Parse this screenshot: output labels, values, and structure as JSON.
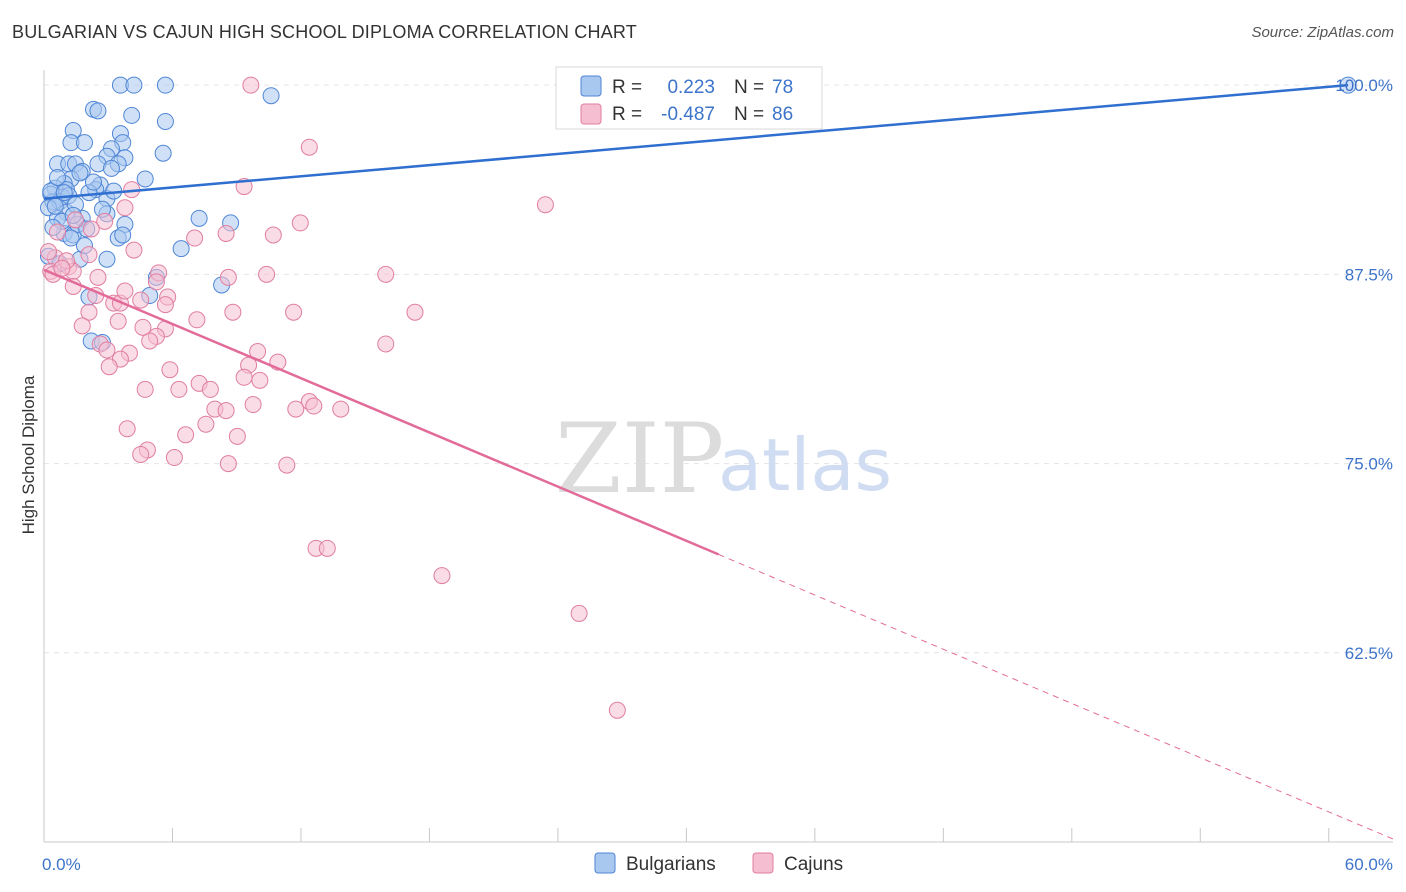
{
  "title": "BULGARIAN VS CAJUN HIGH SCHOOL DIPLOMA CORRELATION CHART",
  "source": "Source: ZipAtlas.com",
  "watermark": {
    "zip": "ZIP",
    "atlas": "atlas"
  },
  "colors": {
    "blue_fill": "#a9c8f0",
    "blue_stroke": "#4f86d6",
    "blue_line": "#2f6fcf",
    "pink_fill": "#f6bfd1",
    "pink_stroke": "#e07ea0",
    "pink_line": "#e26b99",
    "tick_color": "#3d74c9",
    "grid": "#e4e4e4"
  },
  "legend_box": {
    "rows": [
      {
        "r_label": "R =",
        "r_value": "0.223",
        "n_label": "N =",
        "n_value": "78",
        "series": "Bulgarians"
      },
      {
        "r_label": "R =",
        "r_value": "-0.487",
        "n_label": "N =",
        "n_value": "86",
        "series": "Cajuns"
      }
    ]
  },
  "chart_data": {
    "type": "scatter",
    "title": "BULGARIAN VS CAJUN HIGH SCHOOL DIPLOMA CORRELATION CHART",
    "xlabel": "",
    "ylabel": "High School Diploma",
    "xlim": [
      0,
      60
    ],
    "ylim": [
      50,
      101
    ],
    "x_tick_labels": [
      "0.0%",
      "60.0%"
    ],
    "y_ticks": [
      62.5,
      75.0,
      87.5,
      100.0
    ],
    "y_tick_labels": [
      "62.5%",
      "75.0%",
      "87.5%",
      "100.0%"
    ],
    "grid": true,
    "legend": [
      "Bulgarians",
      "Cajuns"
    ],
    "series": [
      {
        "name": "Bulgarians",
        "color": "#4f86d6",
        "r": 0.223,
        "n": 78,
        "trend": {
          "x": [
            0,
            58
          ],
          "y": [
            92.5,
            100.0
          ]
        },
        "points": [
          [
            3.4,
            100
          ],
          [
            4.0,
            100
          ],
          [
            5.4,
            100
          ],
          [
            10.1,
            99.3
          ],
          [
            2.2,
            98.4
          ],
          [
            2.4,
            98.3
          ],
          [
            3.9,
            98.0
          ],
          [
            5.4,
            97.6
          ],
          [
            1.3,
            97
          ],
          [
            3.4,
            96.8
          ],
          [
            1.2,
            96.2
          ],
          [
            1.8,
            96.2
          ],
          [
            3.5,
            96.2
          ],
          [
            3.0,
            95.8
          ],
          [
            2.8,
            95.3
          ],
          [
            5.3,
            95.5
          ],
          [
            3.6,
            95.2
          ],
          [
            0.6,
            94.8
          ],
          [
            1.1,
            94.8
          ],
          [
            1.4,
            94.8
          ],
          [
            2.4,
            94.8
          ],
          [
            3.3,
            94.8
          ],
          [
            1.7,
            94.3
          ],
          [
            1.2,
            93.8
          ],
          [
            0.9,
            93.5
          ],
          [
            2.5,
            93.4
          ],
          [
            0.5,
            93.2
          ],
          [
            1.0,
            93.1
          ],
          [
            2.3,
            93.1
          ],
          [
            4.5,
            93.8
          ],
          [
            0.3,
            92.8
          ],
          [
            0.8,
            92.6
          ],
          [
            2.8,
            92.5
          ],
          [
            0.4,
            92.3
          ],
          [
            0.7,
            92.3
          ],
          [
            0.2,
            91.9
          ],
          [
            1.0,
            91.6
          ],
          [
            0.6,
            91.2
          ],
          [
            1.7,
            91.2
          ],
          [
            2.8,
            91.5
          ],
          [
            6.9,
            91.2
          ],
          [
            8.3,
            90.9
          ],
          [
            3.6,
            90.8
          ],
          [
            0.9,
            90.2
          ],
          [
            1.3,
            90.1
          ],
          [
            1.5,
            90.8
          ],
          [
            1.9,
            90.5
          ],
          [
            1.2,
            89.9
          ],
          [
            3.3,
            89.9
          ],
          [
            3.5,
            90.1
          ],
          [
            6.1,
            89.2
          ],
          [
            1.6,
            88.5
          ],
          [
            2.8,
            88.5
          ],
          [
            5.0,
            87.3
          ],
          [
            7.9,
            86.8
          ],
          [
            2.0,
            86.0
          ],
          [
            4.7,
            86.1
          ],
          [
            2.1,
            83.1
          ],
          [
            2.6,
            83.0
          ],
          [
            0.3,
            93.0
          ],
          [
            0.5,
            92.0
          ],
          [
            1.1,
            92.7
          ],
          [
            2.0,
            92.9
          ],
          [
            0.8,
            91.0
          ],
          [
            1.6,
            94.2
          ],
          [
            2.2,
            93.6
          ],
          [
            0.4,
            90.6
          ],
          [
            1.8,
            89.4
          ],
          [
            3.0,
            94.5
          ],
          [
            0.6,
            93.9
          ],
          [
            1.4,
            92.1
          ],
          [
            2.6,
            91.8
          ],
          [
            0.9,
            92.9
          ],
          [
            1.3,
            91.4
          ],
          [
            58.0,
            100
          ],
          [
            0.2,
            88.7
          ],
          [
            0.7,
            88.2
          ],
          [
            3.1,
            93.0
          ]
        ]
      },
      {
        "name": "Cajuns",
        "color": "#e07ea0",
        "r": -0.487,
        "n": 86,
        "trend": {
          "x": [
            0,
            30
          ],
          "y": [
            87.8,
            69.0
          ]
        },
        "trend_extension": {
          "x": [
            30,
            60
          ],
          "y": [
            69.0,
            50.2
          ]
        },
        "points": [
          [
            9.2,
            100
          ],
          [
            11.8,
            95.9
          ],
          [
            8.9,
            93.3
          ],
          [
            22.3,
            92.1
          ],
          [
            3.9,
            93.1
          ],
          [
            3.6,
            91.9
          ],
          [
            2.7,
            91.0
          ],
          [
            2.1,
            90.5
          ],
          [
            11.4,
            90.9
          ],
          [
            1.4,
            91.1
          ],
          [
            8.1,
            90.2
          ],
          [
            10.2,
            90.1
          ],
          [
            6.7,
            89.9
          ],
          [
            4.0,
            89.1
          ],
          [
            2.0,
            88.8
          ],
          [
            0.5,
            88.6
          ],
          [
            1.1,
            88.0
          ],
          [
            1.3,
            87.7
          ],
          [
            0.3,
            87.7
          ],
          [
            0.4,
            87.5
          ],
          [
            5.1,
            87.6
          ],
          [
            8.2,
            87.3
          ],
          [
            9.9,
            87.5
          ],
          [
            15.2,
            87.5
          ],
          [
            2.4,
            87.3
          ],
          [
            5.0,
            87.0
          ],
          [
            1.3,
            86.7
          ],
          [
            4.3,
            85.8
          ],
          [
            5.5,
            86.0
          ],
          [
            3.1,
            85.6
          ],
          [
            3.4,
            85.6
          ],
          [
            5.4,
            85.5
          ],
          [
            2.0,
            85.0
          ],
          [
            11.1,
            85.0
          ],
          [
            16.5,
            85.0
          ],
          [
            8.4,
            85.0
          ],
          [
            3.3,
            84.4
          ],
          [
            1.7,
            84.1
          ],
          [
            6.8,
            84.5
          ],
          [
            5.4,
            83.9
          ],
          [
            5.0,
            83.4
          ],
          [
            4.7,
            83.1
          ],
          [
            15.2,
            82.9
          ],
          [
            2.5,
            82.9
          ],
          [
            2.8,
            82.5
          ],
          [
            9.5,
            82.4
          ],
          [
            3.8,
            82.3
          ],
          [
            3.4,
            81.9
          ],
          [
            2.9,
            81.4
          ],
          [
            10.4,
            81.7
          ],
          [
            9.1,
            81.5
          ],
          [
            5.6,
            81.2
          ],
          [
            8.9,
            80.7
          ],
          [
            9.6,
            80.5
          ],
          [
            6.9,
            80.3
          ],
          [
            7.4,
            79.9
          ],
          [
            6.0,
            79.9
          ],
          [
            4.5,
            79.9
          ],
          [
            9.3,
            78.9
          ],
          [
            11.8,
            79.1
          ],
          [
            11.2,
            78.6
          ],
          [
            12.0,
            78.8
          ],
          [
            13.2,
            78.6
          ],
          [
            7.6,
            78.6
          ],
          [
            8.1,
            78.5
          ],
          [
            7.2,
            77.6
          ],
          [
            8.6,
            76.8
          ],
          [
            3.7,
            77.3
          ],
          [
            6.3,
            76.9
          ],
          [
            4.6,
            75.9
          ],
          [
            4.3,
            75.6
          ],
          [
            5.8,
            75.4
          ],
          [
            8.2,
            75.0
          ],
          [
            10.8,
            74.9
          ],
          [
            12.1,
            69.4
          ],
          [
            12.6,
            69.4
          ],
          [
            17.7,
            67.6
          ],
          [
            23.8,
            65.1
          ],
          [
            25.5,
            58.7
          ],
          [
            0.2,
            89.0
          ],
          [
            0.6,
            90.3
          ],
          [
            1.0,
            88.4
          ],
          [
            2.3,
            86.1
          ],
          [
            3.6,
            86.4
          ],
          [
            4.4,
            84.0
          ],
          [
            0.8,
            87.9
          ]
        ]
      }
    ]
  }
}
